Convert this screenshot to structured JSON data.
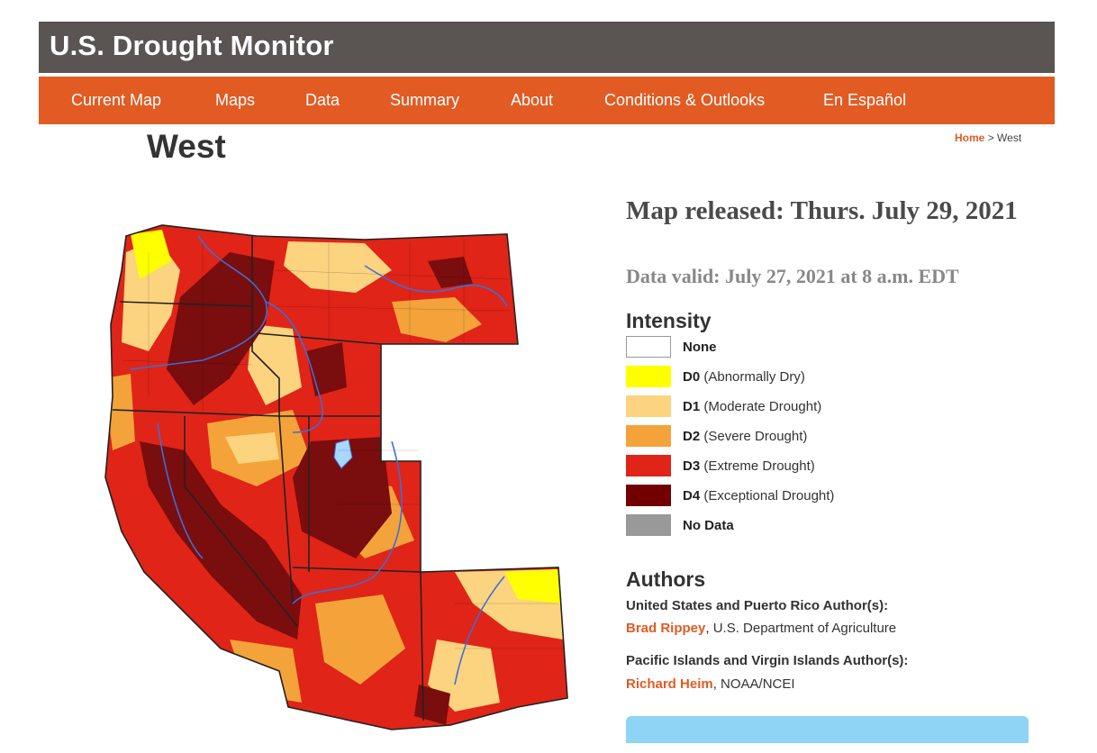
{
  "header": {
    "site_title": "U.S. Drought Monitor"
  },
  "nav": {
    "items": [
      {
        "label": "Current Map"
      },
      {
        "label": "Maps"
      },
      {
        "label": "Data"
      },
      {
        "label": "Summary"
      },
      {
        "label": "About"
      },
      {
        "label": "Conditions & Outlooks"
      },
      {
        "label": "En Español"
      }
    ]
  },
  "page": {
    "title": "West"
  },
  "breadcrumb": {
    "home": "Home",
    "separator": ">",
    "current": "West"
  },
  "map_info": {
    "released": "Map released: Thurs. July 29, 2021",
    "valid": "Data valid: July 27, 2021 at 8 a.m. EDT"
  },
  "legend": {
    "heading": "Intensity",
    "items": [
      {
        "code": "",
        "label": "None",
        "color": "#ffffff"
      },
      {
        "code": "D0",
        "label": "(Abnormally Dry)",
        "color": "#ffff00"
      },
      {
        "code": "D1",
        "label": "(Moderate Drought)",
        "color": "#fcd37f"
      },
      {
        "code": "D2",
        "label": "(Severe Drought)",
        "color": "#ffaa00"
      },
      {
        "code": "D3",
        "label": "(Extreme Drought)",
        "color": "#e60000"
      },
      {
        "code": "D4",
        "label": "(Exceptional Drought)",
        "color": "#730000"
      },
      {
        "code": "",
        "label": "No Data",
        "color": "#999999"
      }
    ]
  },
  "authors": {
    "heading": "Authors",
    "us_heading": "United States and Puerto Rico Author(s):",
    "us_name": "Brad Rippey",
    "us_org": ", U.S. Department of Agriculture",
    "pacific_heading": "Pacific Islands and Virgin Islands Author(s):",
    "pacific_name": "Richard Heim",
    "pacific_org": ", NOAA/NCEI"
  },
  "colors": {
    "nav_bg": "#e15b23",
    "title_bg": "#5a5553",
    "link": "#e15b23"
  }
}
